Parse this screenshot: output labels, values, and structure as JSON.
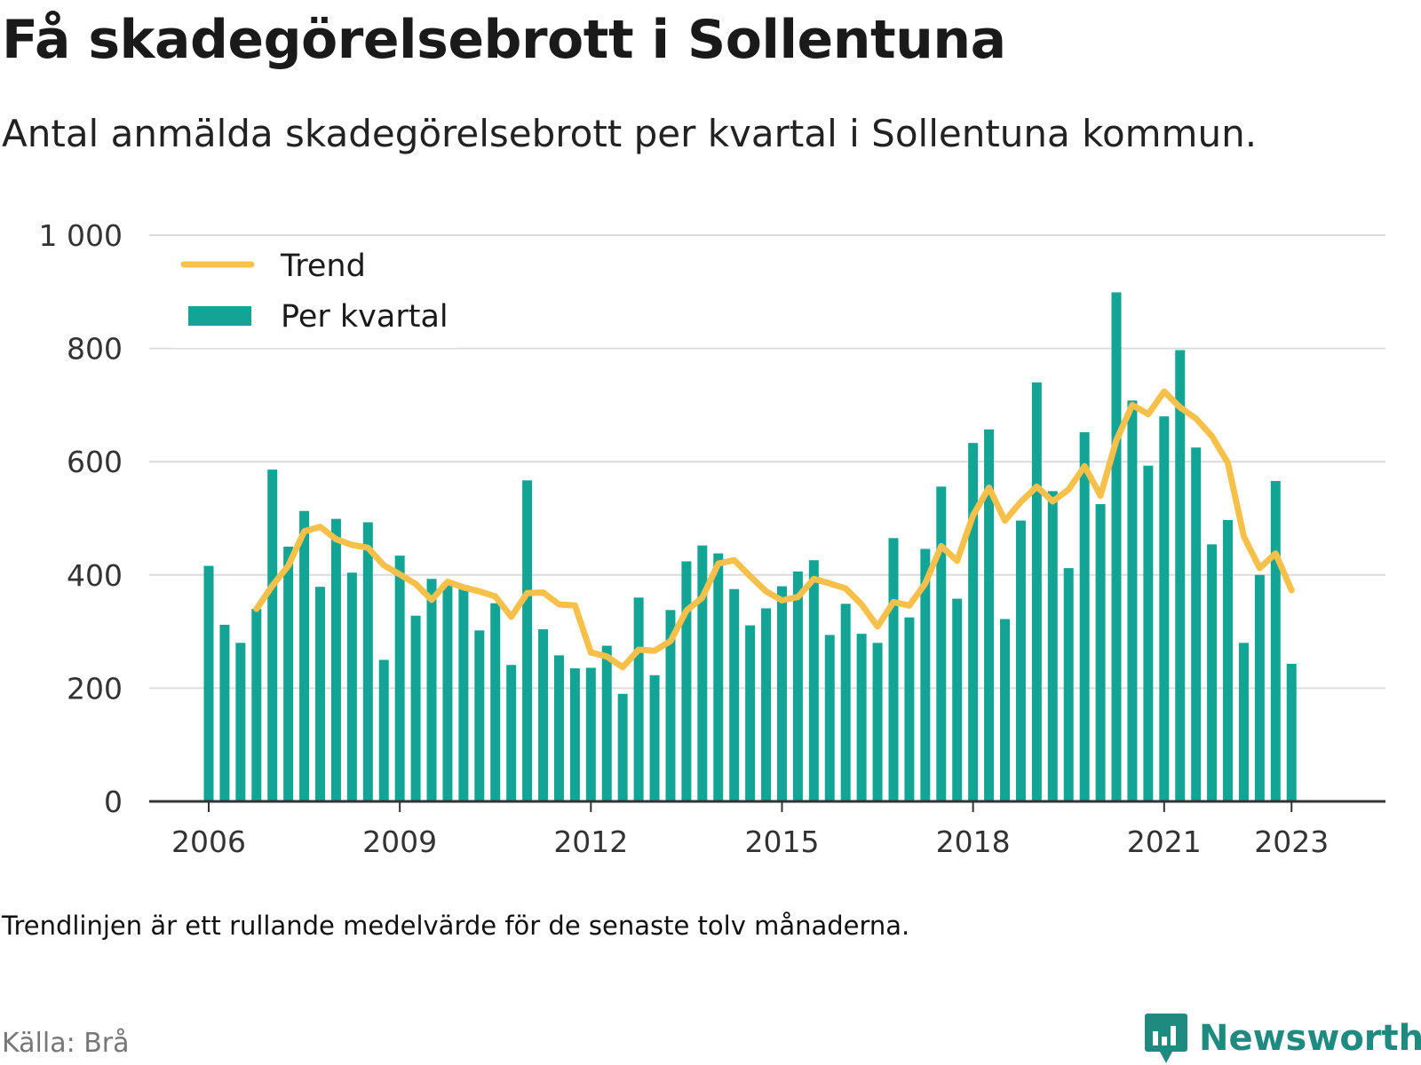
{
  "title": "Få skadegörelsebrott i Sollentuna",
  "subtitle": "Antal anmälda skadegörelsebrott per kvartal i Sollentuna kommun.",
  "note": "Trendlinjen är ett rullande medelvärde för de senaste tolv månaderna.",
  "source": "Källa: Brå",
  "brand": "Newsworthy",
  "colors": {
    "bar": "#12a596",
    "trend": "#f7c04a",
    "grid": "#dcdcdc",
    "axis": "#333333",
    "brand": "#1f8a80"
  },
  "chart_data": {
    "type": "bar",
    "x_start": "2006 Q1",
    "x_end": "2023 Q1",
    "x_ticks": [
      "2006",
      "2009",
      "2012",
      "2015",
      "2018",
      "2021",
      "2023"
    ],
    "y_ticks": [
      "0",
      "200",
      "400",
      "600",
      "800",
      "1 000"
    ],
    "ylim": [
      0,
      1000
    ],
    "legend": {
      "position": "top-left"
    },
    "series": [
      {
        "name": "Per kvartal",
        "kind": "bar",
        "values": [
          416,
          312,
          280,
          340,
          586,
          450,
          513,
          379,
          499,
          404,
          493,
          250,
          434,
          328,
          393,
          385,
          382,
          302,
          350,
          241,
          567,
          304,
          258,
          235,
          236,
          275,
          190,
          360,
          223,
          338,
          424,
          452,
          438,
          375,
          311,
          341,
          380,
          406,
          426,
          294,
          349,
          296,
          280,
          465,
          325,
          446,
          556,
          358,
          633,
          657,
          322,
          496,
          740,
          548,
          412,
          652,
          525,
          899,
          708,
          593,
          680,
          797,
          625,
          454,
          497,
          280,
          400,
          566,
          243
        ]
      },
      {
        "name": "Trend",
        "kind": "line",
        "start_index": 3,
        "values": [
          340,
          381,
          416,
          477,
          485,
          463,
          453,
          448,
          417,
          401,
          384,
          356,
          388,
          378,
          371,
          362,
          326,
          368,
          369,
          348,
          346,
          263,
          256,
          237,
          268,
          266,
          283,
          337,
          360,
          420,
          426,
          398,
          371,
          355,
          361,
          393,
          385,
          376,
          348,
          309,
          352,
          346,
          385,
          451,
          425,
          505,
          554,
          496,
          529,
          556,
          530,
          551,
          592,
          540,
          638,
          700,
          684,
          724,
          696,
          676,
          645,
          598,
          468,
          412,
          438,
          373
        ]
      }
    ]
  }
}
